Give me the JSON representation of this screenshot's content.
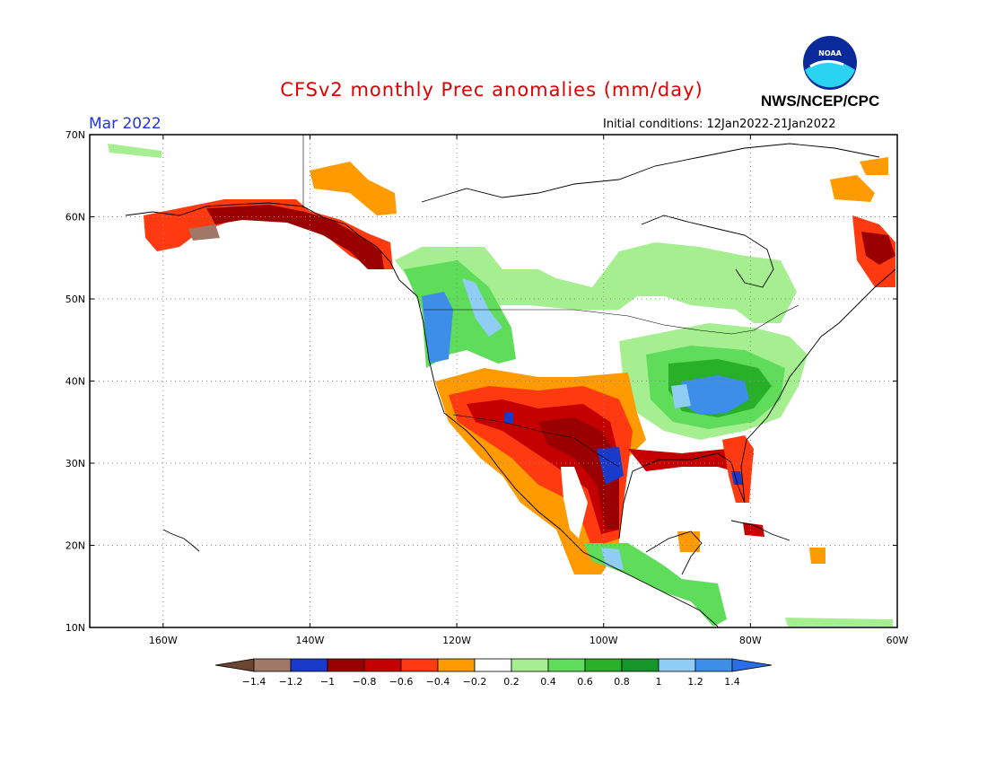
{
  "title": "CFSv2 monthly Prec anomalies (mm/day)",
  "month_label": "Mar 2022",
  "agency": "NWS/NCEP/CPC",
  "logo_text": "NOAA",
  "initial_conditions": "Initial conditions: 12Jan2022-21Jan2022",
  "map": {
    "lon_range": [
      -170,
      -60
    ],
    "lat_range": [
      10,
      70
    ],
    "lat_labels": [
      "70N",
      "60N",
      "50N",
      "40N",
      "30N",
      "20N",
      "10N"
    ],
    "lon_labels": [
      "160W",
      "140W",
      "120W",
      "100W",
      "80W",
      "60W"
    ]
  },
  "colorbar": {
    "ticks": [
      "-1.4",
      "-1.2",
      "-1",
      "-0.8",
      "-0.6",
      "-0.4",
      "-0.2",
      "0.2",
      "0.4",
      "0.6",
      "0.8",
      "1",
      "1.2",
      "1.4"
    ],
    "colors": [
      "#a07868",
      "#1a3acc",
      "#9a0000",
      "#c40000",
      "#ff3a10",
      "#ff9a00",
      "#ffffff",
      "#a6ef90",
      "#5edc5a",
      "#28b028",
      "#14962a",
      "#90cdf4",
      "#3c8ee8"
    ],
    "low_arrow_color": "#6b4530",
    "high_arrow_color": "#2a6de6"
  },
  "anomaly_patches": [
    {
      "region": "alaska-north-coast",
      "value": -0.6
    },
    {
      "region": "alaska-south",
      "value": -1.0
    },
    {
      "region": "pacific-northwest",
      "value": 1.2
    },
    {
      "region": "southwest-us",
      "value": -0.8
    },
    {
      "region": "texas-mexico",
      "value": -1.0
    },
    {
      "region": "ohio-valley",
      "value": 1.2
    },
    {
      "region": "great-lakes",
      "value": 0.8
    },
    {
      "region": "canada-central",
      "value": 0.4
    },
    {
      "region": "florida",
      "value": -1.0
    },
    {
      "region": "central-america",
      "value": 0.6
    }
  ]
}
